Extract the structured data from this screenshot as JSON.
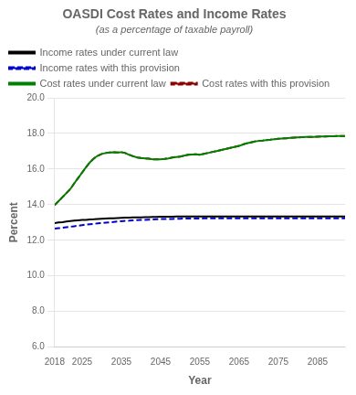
{
  "chart_data": {
    "type": "line",
    "title": "OASDI Cost Rates and Income Rates",
    "subtitle": "(as a percentage of taxable payroll)",
    "x_label": "Year",
    "y_label": "Percent",
    "x": [
      2018,
      2019,
      2020,
      2021,
      2022,
      2023,
      2024,
      2025,
      2026,
      2027,
      2028,
      2029,
      2030,
      2031,
      2032,
      2033,
      2034,
      2035,
      2036,
      2037,
      2038,
      2039,
      2040,
      2041,
      2042,
      2043,
      2044,
      2045,
      2046,
      2047,
      2048,
      2049,
      2050,
      2051,
      2052,
      2053,
      2054,
      2055,
      2056,
      2057,
      2058,
      2059,
      2060,
      2061,
      2062,
      2063,
      2064,
      2065,
      2066,
      2067,
      2068,
      2069,
      2070,
      2071,
      2072,
      2073,
      2074,
      2075,
      2076,
      2077,
      2078,
      2079,
      2080,
      2081,
      2082,
      2083,
      2084,
      2085,
      2086,
      2087,
      2088,
      2089,
      2090,
      2091,
      2092
    ],
    "series": [
      {
        "name": "Income rates under current law",
        "color": "#000000",
        "line_style": "solid",
        "values": [
          12.96,
          13.0,
          13.02,
          13.05,
          13.08,
          13.1,
          13.12,
          13.14,
          13.15,
          13.17,
          13.18,
          13.2,
          13.21,
          13.22,
          13.23,
          13.24,
          13.25,
          13.26,
          13.27,
          13.27,
          13.28,
          13.29,
          13.29,
          13.3,
          13.3,
          13.31,
          13.31,
          13.32,
          13.32,
          13.32,
          13.32,
          13.33,
          13.33,
          13.33,
          13.33,
          13.33,
          13.33,
          13.33,
          13.33,
          13.33,
          13.33,
          13.33,
          13.33,
          13.33,
          13.33,
          13.33,
          13.33,
          13.33,
          13.33,
          13.33,
          13.33,
          13.33,
          13.33,
          13.33,
          13.33,
          13.33,
          13.33,
          13.33,
          13.33,
          13.33,
          13.33,
          13.33,
          13.33,
          13.33,
          13.33,
          13.33,
          13.33,
          13.33,
          13.33,
          13.33,
          13.33,
          13.33,
          13.33,
          13.33,
          13.33
        ]
      },
      {
        "name": "Income rates with this provision",
        "color": "#0000cc",
        "line_style": "dashed",
        "values": [
          12.65,
          12.68,
          12.7,
          12.73,
          12.76,
          12.79,
          12.82,
          12.85,
          12.88,
          12.9,
          12.92,
          12.95,
          12.97,
          12.99,
          13.01,
          13.03,
          13.05,
          13.07,
          13.09,
          13.1,
          13.12,
          13.13,
          13.14,
          13.15,
          13.16,
          13.17,
          13.18,
          13.19,
          13.19,
          13.2,
          13.2,
          13.21,
          13.21,
          13.22,
          13.22,
          13.22,
          13.22,
          13.22,
          13.23,
          13.23,
          13.23,
          13.23,
          13.23,
          13.23,
          13.23,
          13.23,
          13.23,
          13.23,
          13.23,
          13.23,
          13.23,
          13.23,
          13.23,
          13.23,
          13.23,
          13.23,
          13.23,
          13.23,
          13.23,
          13.23,
          13.23,
          13.23,
          13.23,
          13.23,
          13.23,
          13.23,
          13.23,
          13.23,
          13.23,
          13.23,
          13.23,
          13.23,
          13.23,
          13.23,
          13.23
        ]
      },
      {
        "name": "Cost rates under current law",
        "color": "#008000",
        "line_style": "solid",
        "values": [
          13.97,
          14.2,
          14.42,
          14.65,
          14.88,
          15.2,
          15.5,
          15.8,
          16.1,
          16.38,
          16.6,
          16.75,
          16.85,
          16.9,
          16.93,
          16.95,
          16.93,
          16.95,
          16.9,
          16.8,
          16.72,
          16.65,
          16.62,
          16.6,
          16.58,
          16.55,
          16.55,
          16.55,
          16.57,
          16.6,
          16.65,
          16.68,
          16.7,
          16.75,
          16.8,
          16.82,
          16.83,
          16.8,
          16.85,
          16.9,
          16.95,
          17.0,
          17.05,
          17.1,
          17.15,
          17.2,
          17.25,
          17.3,
          17.38,
          17.45,
          17.5,
          17.55,
          17.58,
          17.6,
          17.63,
          17.65,
          17.68,
          17.7,
          17.72,
          17.73,
          17.75,
          17.77,
          17.78,
          17.79,
          17.8,
          17.8,
          17.81,
          17.82,
          17.83,
          17.83,
          17.84,
          17.84,
          17.85,
          17.85,
          17.86
        ]
      },
      {
        "name": "Cost rates with this provision",
        "color": "#8b0000",
        "line_style": "dashed",
        "values": [
          13.97,
          14.2,
          14.42,
          14.65,
          14.88,
          15.2,
          15.5,
          15.8,
          16.1,
          16.38,
          16.6,
          16.75,
          16.85,
          16.9,
          16.93,
          16.95,
          16.93,
          16.95,
          16.9,
          16.8,
          16.72,
          16.65,
          16.62,
          16.6,
          16.58,
          16.55,
          16.55,
          16.55,
          16.57,
          16.6,
          16.65,
          16.68,
          16.7,
          16.75,
          16.8,
          16.82,
          16.83,
          16.8,
          16.85,
          16.9,
          16.95,
          17.0,
          17.05,
          17.1,
          17.15,
          17.2,
          17.25,
          17.3,
          17.38,
          17.45,
          17.5,
          17.55,
          17.58,
          17.6,
          17.63,
          17.65,
          17.68,
          17.7,
          17.72,
          17.73,
          17.75,
          17.77,
          17.78,
          17.79,
          17.8,
          17.8,
          17.81,
          17.82,
          17.83,
          17.83,
          17.84,
          17.84,
          17.85,
          17.85,
          17.86
        ]
      }
    ],
    "xlim": [
      2018,
      2092
    ],
    "xticks": [
      2018,
      2025,
      2035,
      2045,
      2055,
      2065,
      2075,
      2085
    ],
    "ylim": [
      6.0,
      20.0
    ],
    "yticks": [
      {
        "value": 6.0,
        "label": "6.0"
      },
      {
        "value": 8.0,
        "label": "8.0"
      },
      {
        "value": 10.0,
        "label": "10.0"
      },
      {
        "value": 12.0,
        "label": "12.0"
      },
      {
        "value": 14.0,
        "label": "14.0"
      },
      {
        "value": 16.0,
        "label": "16.0"
      },
      {
        "value": 18.0,
        "label": "18.0"
      },
      {
        "value": 20.0,
        "label": "20.0"
      }
    ],
    "grid": "y",
    "legend": "upper left"
  }
}
